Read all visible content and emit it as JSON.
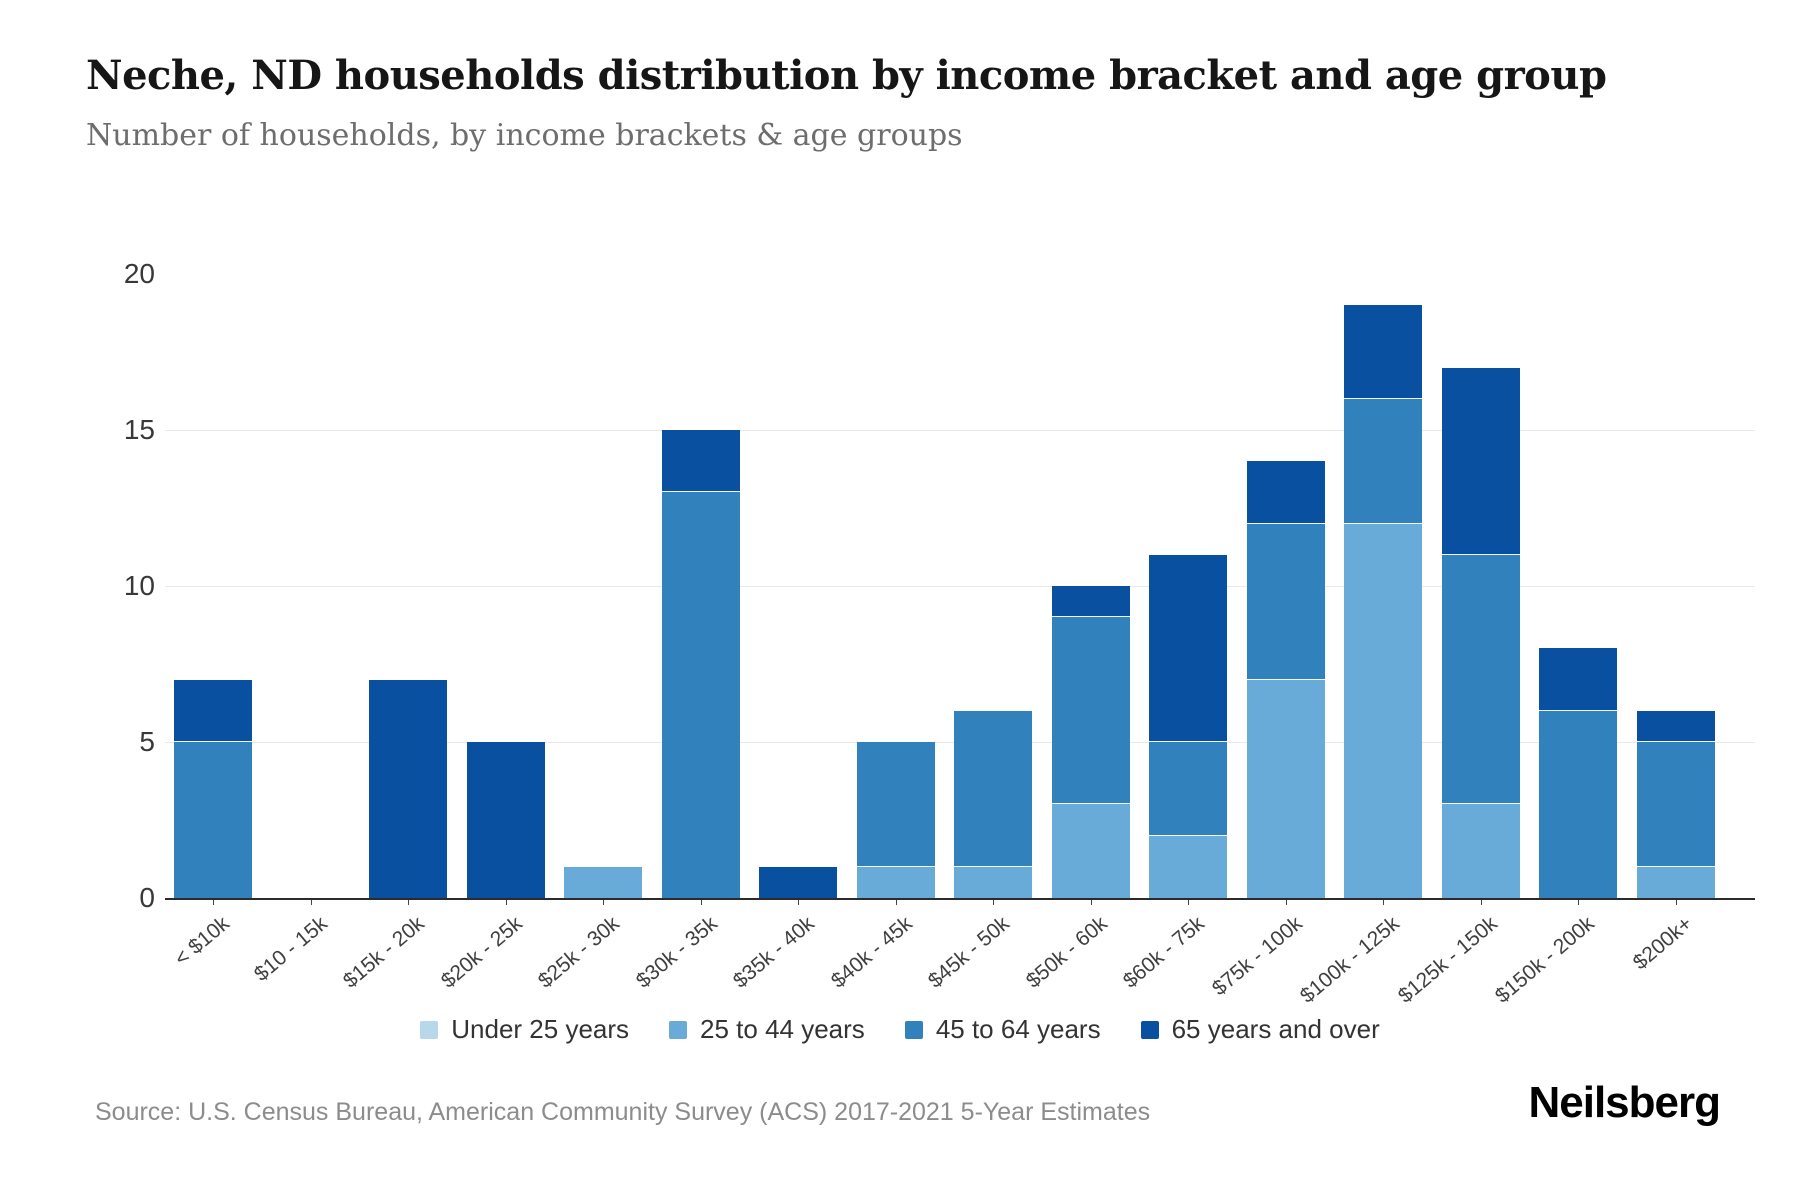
{
  "header": {
    "title": "Neche, ND households distribution by income bracket and age group",
    "subtitle": "Number of households, by income brackets & age groups"
  },
  "footer": {
    "source": "Source: U.S. Census Bureau, American Community Survey (ACS) 2017-2021 5-Year Estimates",
    "brand": "Neilsberg"
  },
  "chart_data": {
    "type": "bar",
    "stacked": true,
    "title": "Neche, ND households distribution by income bracket and age group",
    "xlabel": "",
    "ylabel": "Number of households",
    "ylim": [
      0,
      20
    ],
    "yticks": [
      0,
      5,
      10,
      15,
      20
    ],
    "grid": true,
    "legend_position": "bottom",
    "categories": [
      "< $10k",
      "$10 - 15k",
      "$15k - 20k",
      "$20k - 25k",
      "$25k - 30k",
      "$30k - 35k",
      "$35k - 40k",
      "$40k - 45k",
      "$45k - 50k",
      "$50k - 60k",
      "$60k - 75k",
      "$75k - 100k",
      "$100k - 125k",
      "$125k - 150k",
      "$150k - 200k",
      "$200k+"
    ],
    "series": [
      {
        "name": "Under 25 years",
        "color": "#b9d7ea",
        "values": [
          0,
          0,
          0,
          0,
          0,
          0,
          0,
          0,
          0,
          0,
          0,
          0,
          0,
          0,
          0,
          0
        ]
      },
      {
        "name": "25 to 44 years",
        "color": "#69abd8",
        "values": [
          0,
          0,
          0,
          0,
          1,
          0,
          0,
          1,
          1,
          3,
          2,
          7,
          12,
          3,
          0,
          1
        ]
      },
      {
        "name": "45 to 64 years",
        "color": "#3181bd",
        "values": [
          5,
          0,
          0,
          0,
          0,
          13,
          0,
          4,
          5,
          6,
          3,
          5,
          4,
          8,
          6,
          4
        ]
      },
      {
        "name": "65 years and over",
        "color": "#0a50a1",
        "values": [
          2,
          0,
          7,
          5,
          0,
          2,
          1,
          0,
          0,
          1,
          6,
          2,
          3,
          6,
          2,
          1
        ]
      }
    ],
    "totals": [
      7,
      0,
      7,
      5,
      1,
      15,
      1,
      5,
      6,
      10,
      11,
      14,
      19,
      17,
      8,
      6
    ]
  }
}
